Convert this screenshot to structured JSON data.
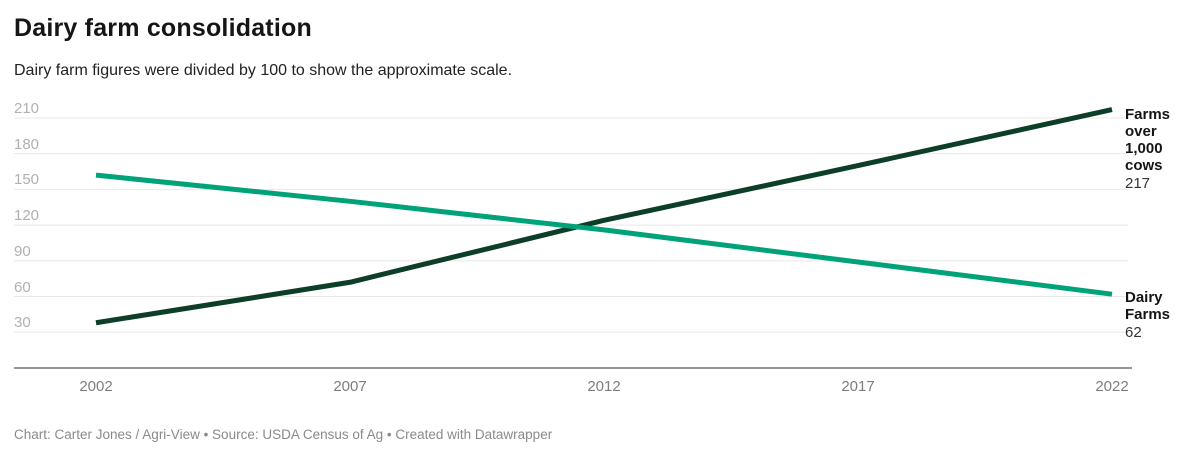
{
  "header": {
    "title": "Dairy farm consolidation",
    "subtitle": "Dairy farm figures were divided by 100 to show the approximate scale."
  },
  "chart_data": {
    "type": "line",
    "x": [
      2002,
      2007,
      2012,
      2017,
      2022
    ],
    "x_tick_labels": [
      "2002",
      "2007",
      "2012",
      "2017",
      "2022"
    ],
    "y_ticks": [
      30,
      60,
      90,
      120,
      150,
      180,
      210
    ],
    "ylim": [
      0,
      215
    ],
    "grid": true,
    "legend_position": "right-end-labels",
    "series": [
      {
        "name": "Farms over 1,000 cows",
        "values": [
          38,
          72,
          124,
          170,
          217
        ],
        "color": "#0c3e28",
        "end_label": "Farms over 1,000 cows",
        "end_value": "217"
      },
      {
        "name": "Dairy Farms",
        "values": [
          162,
          140,
          116,
          89,
          62
        ],
        "color": "#00a378",
        "end_label": "Dairy Farms",
        "end_value": "62"
      }
    ],
    "colors": {
      "gridline": "#e8e8e8",
      "axis_line": "#2e2e2e",
      "y_tick_text": "#b0b0b0",
      "x_tick_text": "#7d7d7d"
    }
  },
  "footer": {
    "text": "Chart: Carter Jones / Agri-View • Source: USDA Census of Ag  • Created with Datawrapper"
  }
}
